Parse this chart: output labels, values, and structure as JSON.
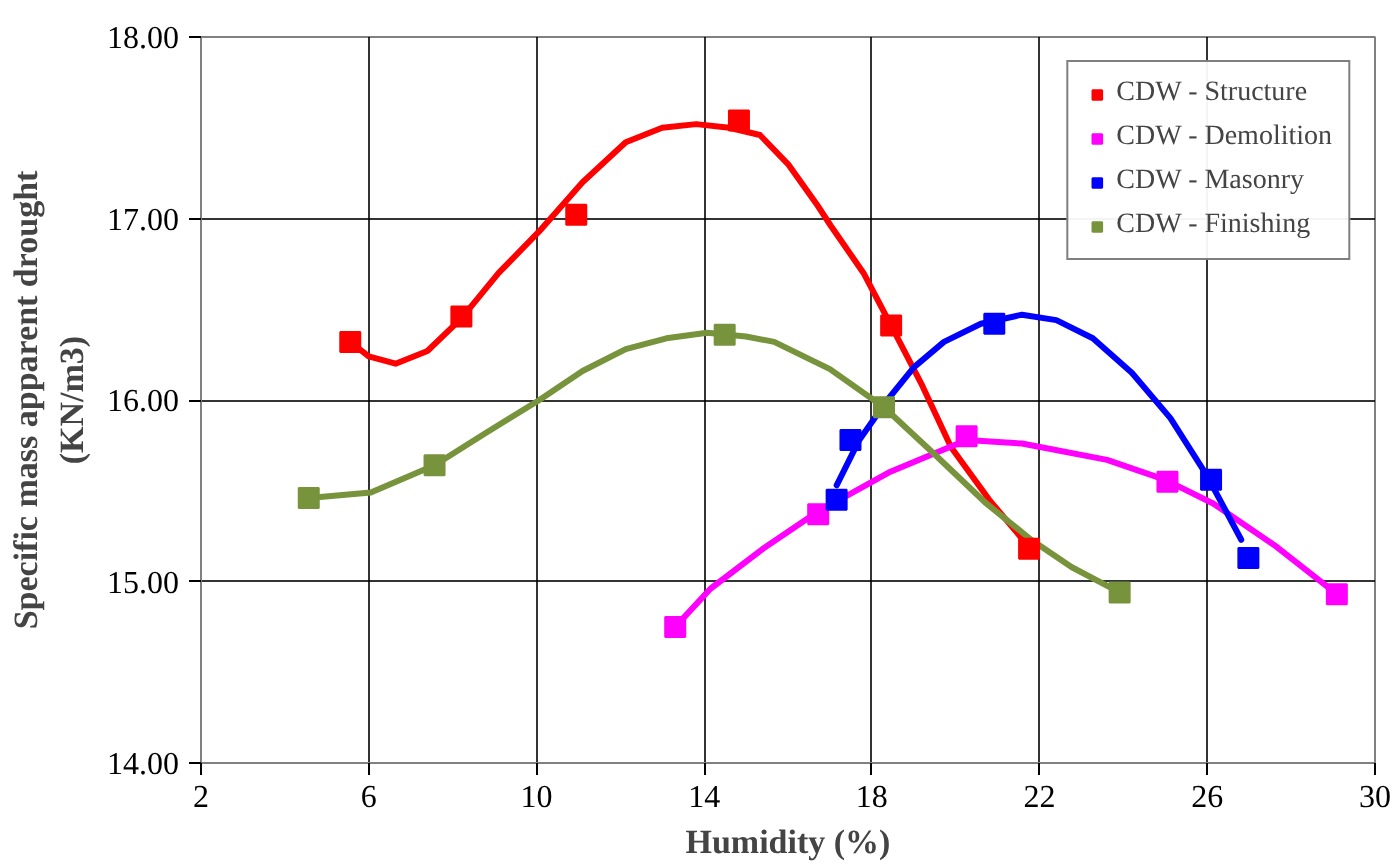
{
  "chart_data": {
    "type": "scatter",
    "xlabel": "Humidity (%)",
    "ylabel": "Specific mass apparent drought\n(KN/m3)",
    "xlim": [
      2,
      30
    ],
    "xticks": [
      2,
      6,
      10,
      14,
      18,
      22,
      26,
      30
    ],
    "ylim": [
      14,
      18
    ],
    "yticks": [
      {
        "value": 14,
        "label": "14.00"
      },
      {
        "value": 15,
        "label": "15.00"
      },
      {
        "value": 16,
        "label": "16.00"
      },
      {
        "value": 17,
        "label": "17.00"
      },
      {
        "value": 18,
        "label": "18.00"
      }
    ],
    "grid": true,
    "legend": "top right",
    "marker": "square",
    "line_style": "solid",
    "series": [
      {
        "type": "line",
        "marker": "none",
        "color": "#ff0000",
        "x": [
          5.56,
          6.0,
          6.64,
          7.4,
          8.21,
          9.1,
          10.07,
          11.1,
          12.13,
          13.0,
          13.81,
          14.6,
          15.33,
          16.0,
          16.68,
          17.02,
          17.8,
          18.46,
          19.2,
          19.89,
          20.8,
          21.75
        ],
        "values": [
          16.32,
          16.24,
          16.2,
          16.27,
          16.45,
          16.7,
          16.93,
          17.2,
          17.42,
          17.5,
          17.52,
          17.5,
          17.46,
          17.3,
          17.08,
          16.96,
          16.7,
          16.41,
          16.08,
          15.74,
          15.45,
          15.19
        ]
      },
      {
        "type": "line",
        "marker": "none",
        "color": "#ff00ff",
        "x": [
          13.31,
          14.15,
          15.4,
          16.68,
          18.4,
          20.26,
          21.58,
          23.61,
          25.0,
          26.14,
          27.6,
          29.09
        ],
        "values": [
          14.75,
          14.96,
          15.18,
          15.38,
          15.6,
          15.78,
          15.76,
          15.67,
          15.56,
          15.43,
          15.2,
          14.93
        ]
      },
      {
        "type": "line",
        "marker": "none",
        "color": "#0000ff",
        "x": [
          17.16,
          17.7,
          18.37,
          19.0,
          19.72,
          20.6,
          21.58,
          22.4,
          23.27,
          24.2,
          25.12,
          26.0,
          26.81
        ],
        "values": [
          15.53,
          15.78,
          16.0,
          16.18,
          16.32,
          16.42,
          16.47,
          16.44,
          16.34,
          16.15,
          15.9,
          15.58,
          15.23
        ]
      },
      {
        "type": "line",
        "marker": "none",
        "color": "#77933c",
        "x": [
          4.57,
          6.05,
          7.57,
          8.8,
          10.07,
          11.1,
          12.13,
          13.1,
          14.07,
          15.0,
          15.67,
          17.0,
          18.29,
          19.5,
          20.73,
          21.8,
          22.76,
          23.91
        ],
        "values": [
          15.46,
          15.49,
          15.64,
          15.82,
          16.0,
          16.16,
          16.28,
          16.34,
          16.37,
          16.35,
          16.32,
          16.17,
          15.96,
          15.7,
          15.43,
          15.23,
          15.08,
          14.94
        ]
      },
      {
        "name": "CDW - Structure",
        "color": "#ff0000",
        "x": [
          5.56,
          8.21,
          10.95,
          14.83,
          18.46,
          21.75
        ],
        "values": [
          16.32,
          16.46,
          17.02,
          17.54,
          16.41,
          15.18
        ]
      },
      {
        "name": "CDW - Demolition",
        "color": "#ff00ff",
        "x": [
          13.31,
          16.72,
          20.26,
          25.05,
          29.09
        ],
        "values": [
          14.75,
          15.37,
          15.8,
          15.55,
          14.93
        ]
      },
      {
        "name": "CDW - Masonry",
        "color": "#0000ff",
        "x": [
          17.16,
          17.49,
          20.92,
          26.09,
          26.98
        ],
        "values": [
          15.45,
          15.78,
          16.42,
          15.56,
          15.13
        ]
      },
      {
        "name": "CDW - Finishing",
        "color": "#77933c",
        "x": [
          4.57,
          7.57,
          14.49,
          18.29,
          23.91
        ],
        "values": [
          15.46,
          15.64,
          16.36,
          15.96,
          14.94
        ]
      }
    ]
  }
}
